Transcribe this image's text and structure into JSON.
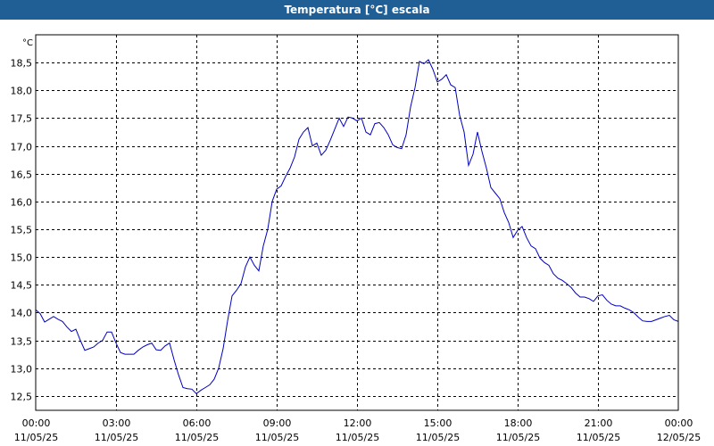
{
  "header": {
    "title": "Temperatura [°C] escala"
  },
  "chart_data": {
    "type": "line",
    "title": "Temperatura [°C] escala",
    "unit": "°C",
    "xlabel": "",
    "ylabel": "",
    "ylim": [
      12.24,
      19.0
    ],
    "xlim": [
      "11/05/25 00:00",
      "12/05/25 00:00"
    ],
    "grid": true,
    "legend": "none",
    "y_ticks": [
      "12,5",
      "13,0",
      "13,5",
      "14,0",
      "14,5",
      "15,0",
      "15,5",
      "16,0",
      "16,5",
      "17,0",
      "17,5",
      "18,0",
      "18,5"
    ],
    "x_ticks": [
      {
        "time": "00:00",
        "date": "11/05/25"
      },
      {
        "time": "03:00",
        "date": "11/05/25"
      },
      {
        "time": "06:00",
        "date": "11/05/25"
      },
      {
        "time": "09:00",
        "date": "11/05/25"
      },
      {
        "time": "12:00",
        "date": "11/05/25"
      },
      {
        "time": "15:00",
        "date": "11/05/25"
      },
      {
        "time": "18:00",
        "date": "11/05/25"
      },
      {
        "time": "21:00",
        "date": "11/05/25"
      },
      {
        "time": "00:00",
        "date": "12/05/25"
      }
    ],
    "series": [
      {
        "color": "#0000c0",
        "points": [
          [
            "00:00",
            14.05
          ],
          [
            "00:10",
            13.98
          ],
          [
            "00:20",
            13.83
          ],
          [
            "00:30",
            13.88
          ],
          [
            "00:40",
            13.93
          ],
          [
            "00:50",
            13.88
          ],
          [
            "01:00",
            13.84
          ],
          [
            "01:10",
            13.74
          ],
          [
            "01:20",
            13.66
          ],
          [
            "01:30",
            13.7
          ],
          [
            "01:40",
            13.5
          ],
          [
            "01:50",
            13.32
          ],
          [
            "02:00",
            13.35
          ],
          [
            "02:10",
            13.38
          ],
          [
            "02:20",
            13.45
          ],
          [
            "02:30",
            13.5
          ],
          [
            "02:40",
            13.65
          ],
          [
            "02:50",
            13.65
          ],
          [
            "03:00",
            13.45
          ],
          [
            "03:10",
            13.28
          ],
          [
            "03:20",
            13.25
          ],
          [
            "03:30",
            13.25
          ],
          [
            "03:40",
            13.25
          ],
          [
            "03:50",
            13.32
          ],
          [
            "04:00",
            13.38
          ],
          [
            "04:10",
            13.42
          ],
          [
            "04:20",
            13.45
          ],
          [
            "04:30",
            13.33
          ],
          [
            "04:40",
            13.32
          ],
          [
            "04:50",
            13.4
          ],
          [
            "05:00",
            13.45
          ],
          [
            "05:10",
            13.15
          ],
          [
            "05:20",
            12.88
          ],
          [
            "05:30",
            12.65
          ],
          [
            "05:40",
            12.63
          ],
          [
            "05:50",
            12.62
          ],
          [
            "06:00",
            12.54
          ],
          [
            "06:10",
            12.6
          ],
          [
            "06:20",
            12.65
          ],
          [
            "06:30",
            12.7
          ],
          [
            "06:40",
            12.8
          ],
          [
            "06:50",
            13.0
          ],
          [
            "07:00",
            13.35
          ],
          [
            "07:10",
            13.85
          ],
          [
            "07:20",
            14.3
          ],
          [
            "07:30",
            14.4
          ],
          [
            "07:40",
            14.52
          ],
          [
            "07:50",
            14.82
          ],
          [
            "08:00",
            15.0
          ],
          [
            "08:10",
            14.85
          ],
          [
            "08:20",
            14.75
          ],
          [
            "08:30",
            15.2
          ],
          [
            "08:40",
            15.5
          ],
          [
            "08:50",
            16.0
          ],
          [
            "09:00",
            16.22
          ],
          [
            "09:10",
            16.28
          ],
          [
            "09:20",
            16.45
          ],
          [
            "09:30",
            16.6
          ],
          [
            "09:40",
            16.8
          ],
          [
            "09:50",
            17.12
          ],
          [
            "10:00",
            17.25
          ],
          [
            "10:10",
            17.33
          ],
          [
            "10:20",
            17.0
          ],
          [
            "10:30",
            17.05
          ],
          [
            "10:40",
            16.83
          ],
          [
            "10:50",
            16.92
          ],
          [
            "11:00",
            17.1
          ],
          [
            "11:10",
            17.3
          ],
          [
            "11:20",
            17.5
          ],
          [
            "11:30",
            17.35
          ],
          [
            "11:40",
            17.52
          ],
          [
            "11:50",
            17.5
          ],
          [
            "12:00",
            17.45
          ],
          [
            "12:10",
            17.5
          ],
          [
            "12:20",
            17.25
          ],
          [
            "12:30",
            17.2
          ],
          [
            "12:40",
            17.4
          ],
          [
            "12:50",
            17.42
          ],
          [
            "13:00",
            17.33
          ],
          [
            "13:10",
            17.2
          ],
          [
            "13:20",
            17.02
          ],
          [
            "13:30",
            16.97
          ],
          [
            "13:40",
            16.95
          ],
          [
            "13:50",
            17.2
          ],
          [
            "14:00",
            17.7
          ],
          [
            "14:10",
            18.05
          ],
          [
            "14:20",
            18.52
          ],
          [
            "14:30",
            18.48
          ],
          [
            "14:40",
            18.55
          ],
          [
            "14:50",
            18.38
          ],
          [
            "15:00",
            18.15
          ],
          [
            "15:10",
            18.2
          ],
          [
            "15:20",
            18.28
          ],
          [
            "15:30",
            18.1
          ],
          [
            "15:40",
            18.05
          ],
          [
            "15:50",
            17.55
          ],
          [
            "16:00",
            17.25
          ],
          [
            "16:10",
            16.65
          ],
          [
            "16:20",
            16.85
          ],
          [
            "16:30",
            17.25
          ],
          [
            "16:40",
            16.9
          ],
          [
            "16:50",
            16.6
          ],
          [
            "17:00",
            16.25
          ],
          [
            "17:10",
            16.15
          ],
          [
            "17:20",
            16.05
          ],
          [
            "17:30",
            15.8
          ],
          [
            "17:40",
            15.62
          ],
          [
            "17:50",
            15.35
          ],
          [
            "18:00",
            15.48
          ],
          [
            "18:10",
            15.55
          ],
          [
            "18:20",
            15.35
          ],
          [
            "18:30",
            15.2
          ],
          [
            "18:40",
            15.15
          ],
          [
            "18:50",
            14.98
          ],
          [
            "19:00",
            14.9
          ],
          [
            "19:10",
            14.85
          ],
          [
            "19:20",
            14.7
          ],
          [
            "19:30",
            14.62
          ],
          [
            "19:40",
            14.58
          ],
          [
            "19:50",
            14.52
          ],
          [
            "20:00",
            14.45
          ],
          [
            "20:10",
            14.35
          ],
          [
            "20:20",
            14.28
          ],
          [
            "20:30",
            14.28
          ],
          [
            "20:40",
            14.25
          ],
          [
            "20:50",
            14.2
          ],
          [
            "21:00",
            14.3
          ],
          [
            "21:10",
            14.32
          ],
          [
            "21:20",
            14.22
          ],
          [
            "21:30",
            14.15
          ],
          [
            "21:40",
            14.12
          ],
          [
            "21:50",
            14.12
          ],
          [
            "22:00",
            14.08
          ],
          [
            "22:10",
            14.05
          ],
          [
            "22:20",
            14.0
          ],
          [
            "22:30",
            13.92
          ],
          [
            "22:40",
            13.85
          ],
          [
            "22:50",
            13.84
          ],
          [
            "23:00",
            13.84
          ],
          [
            "23:10",
            13.87
          ],
          [
            "23:20",
            13.9
          ],
          [
            "23:30",
            13.93
          ],
          [
            "23:40",
            13.95
          ],
          [
            "23:50",
            13.87
          ],
          [
            "24:00",
            13.84
          ]
        ]
      }
    ]
  }
}
